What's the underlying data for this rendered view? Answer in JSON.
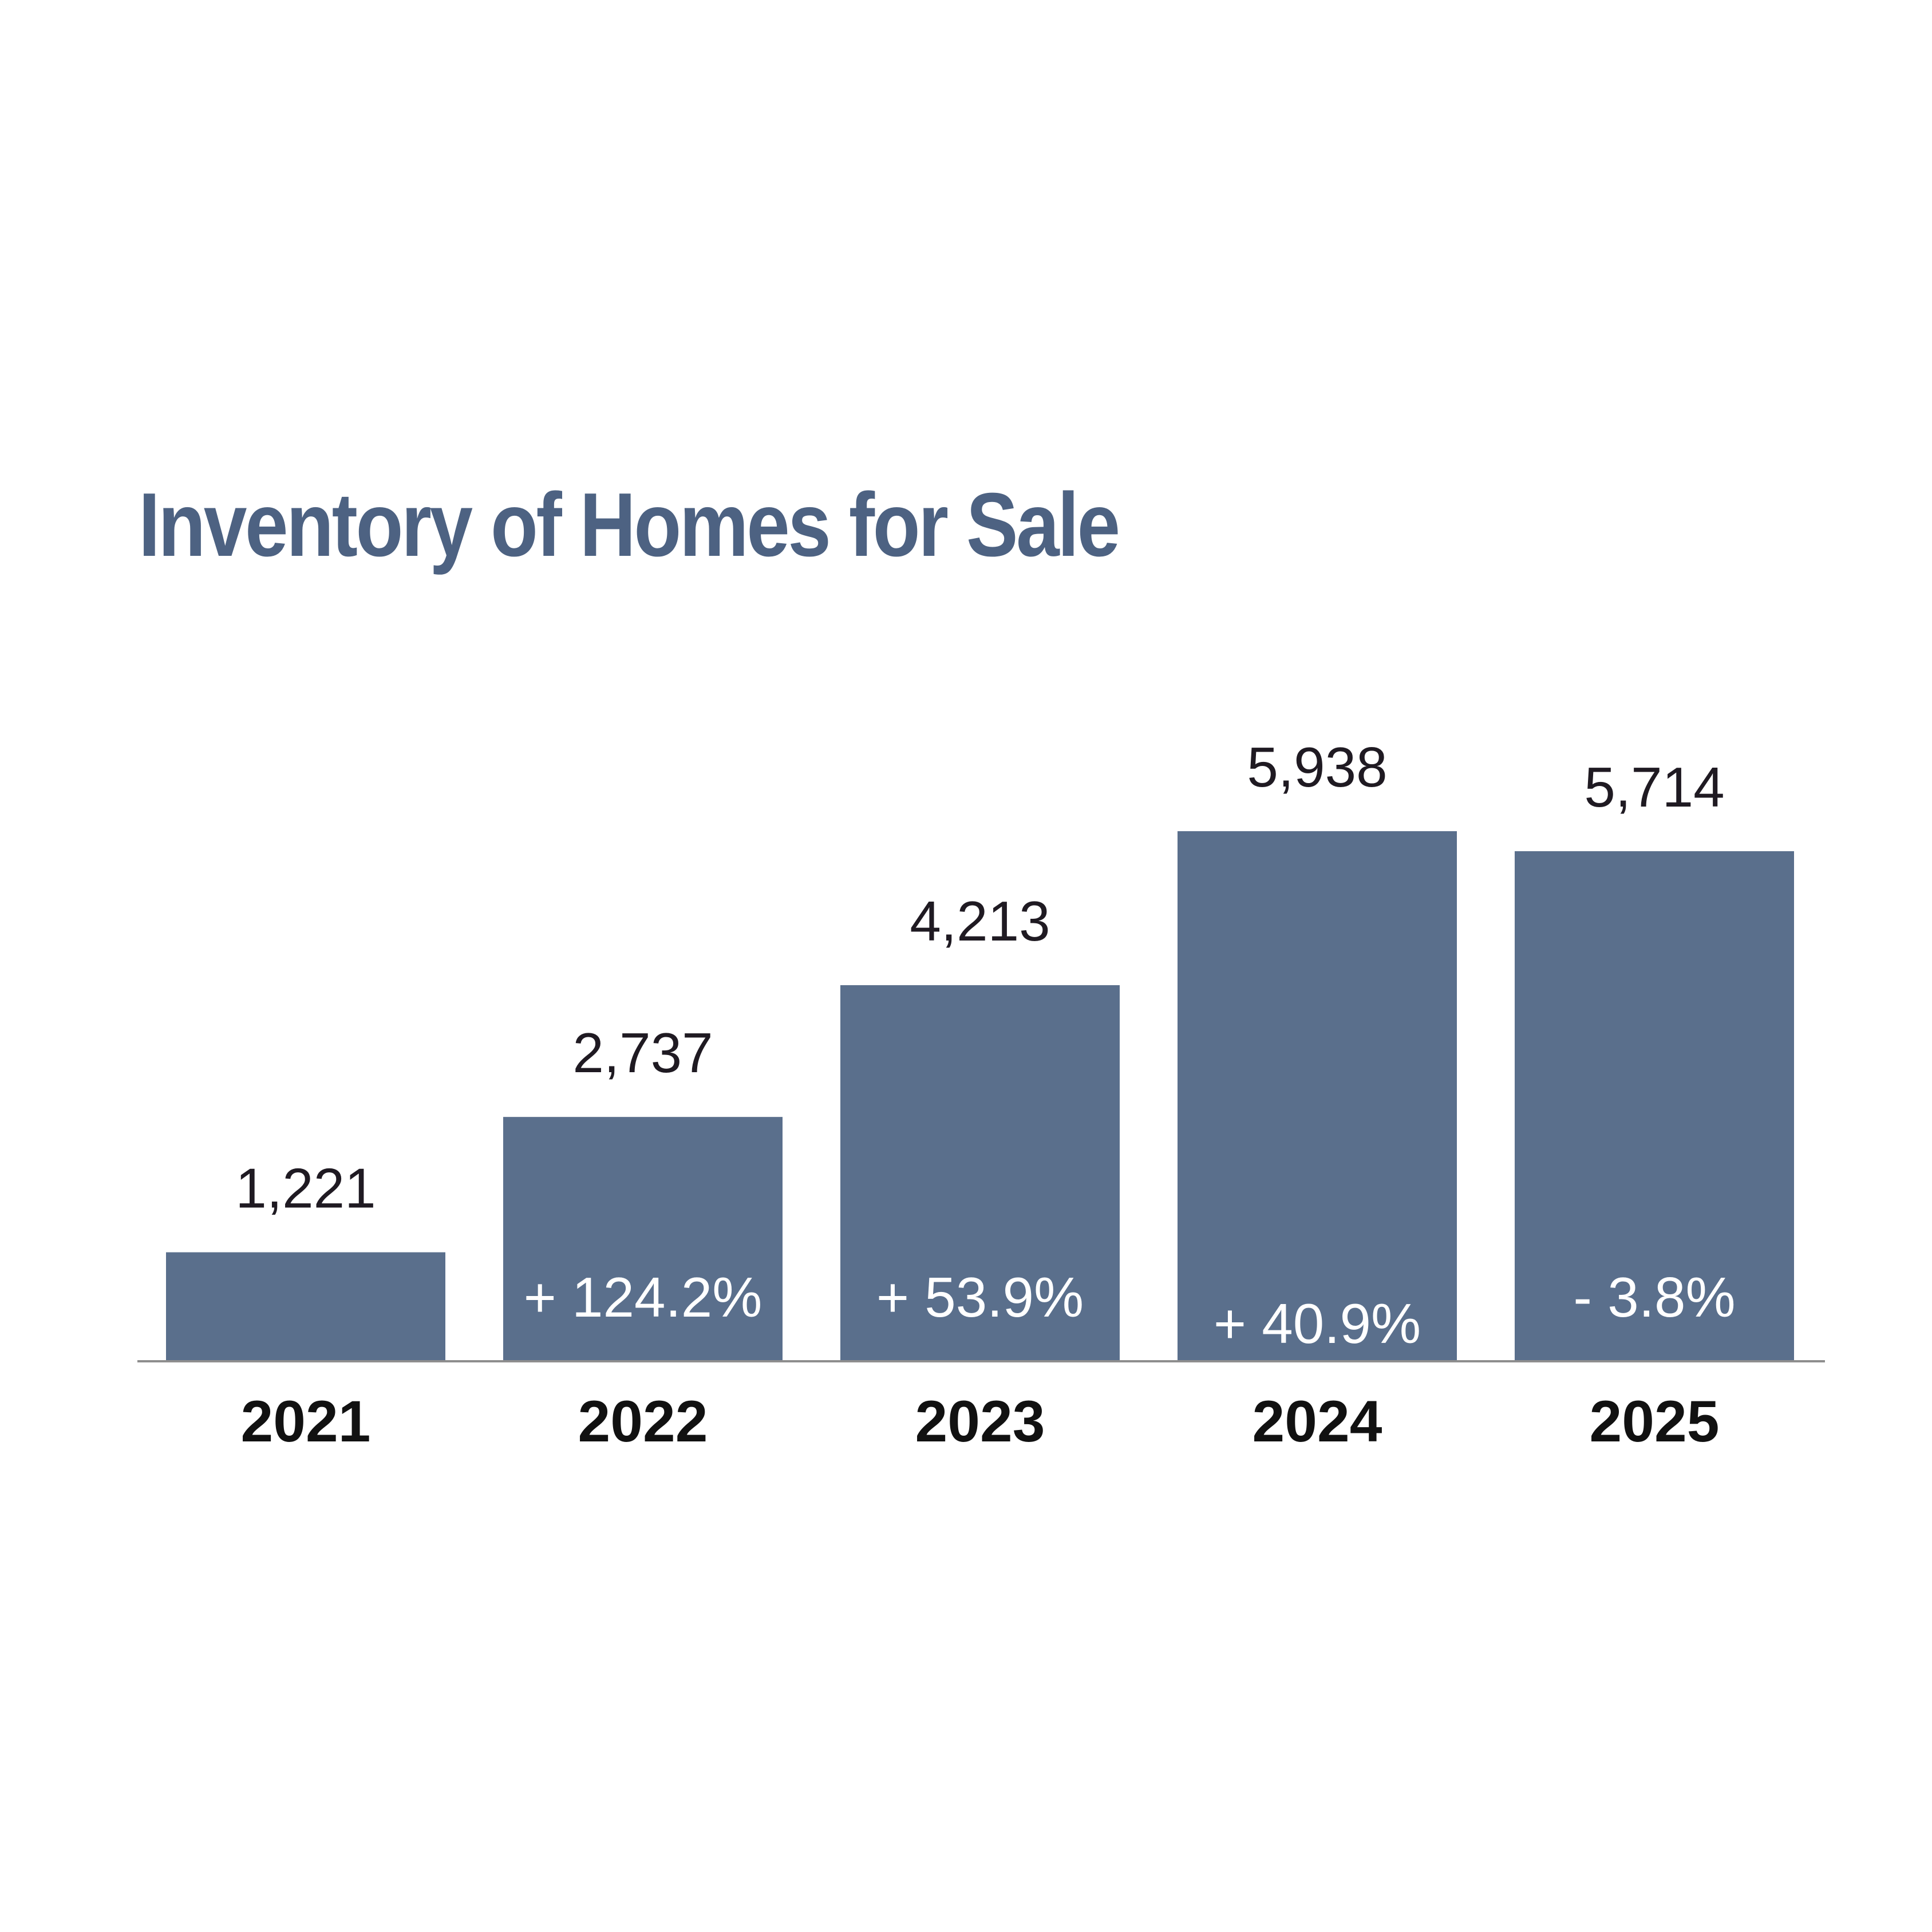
{
  "chart_data": {
    "type": "bar",
    "title": "Inventory of Homes for Sale",
    "xlabel": "",
    "ylabel": "",
    "categories": [
      "2021",
      "2022",
      "2023",
      "2024",
      "2025"
    ],
    "values": [
      1221,
      2737,
      4213,
      5938,
      5714
    ],
    "value_labels": [
      "1,221",
      "2,737",
      "4,213",
      "5,938",
      "5,714"
    ],
    "change_labels": [
      "",
      "+ 124.2%",
      "+ 53.9%",
      "+ 40.9%",
      "- 3.8%"
    ],
    "ylim": [
      0,
      5938
    ],
    "grid": false,
    "legend": "none",
    "colors": {
      "bar": "#5a6f8c",
      "title": "#4d6282",
      "axis": "#8e8e8e",
      "value_text": "#1f1a22",
      "change_text": "#ffffff",
      "tick_text": "#111111"
    }
  }
}
